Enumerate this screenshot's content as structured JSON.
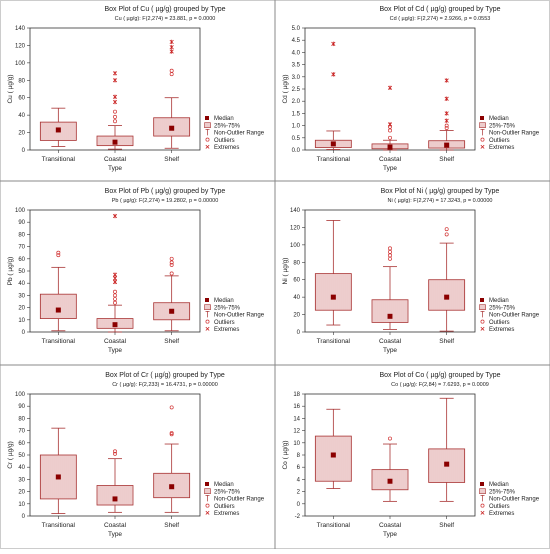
{
  "colors": {
    "box_stroke": "#a83232",
    "box_fill": "#f4dede",
    "box_hatch": "#e3b3b3",
    "median": "#8b0000",
    "whisker": "#a83232",
    "outlier": "#d03030",
    "extreme": "#c81e1e",
    "axis": "#333333",
    "frame": "#888888",
    "legend_box": "#bbbbbb"
  },
  "legend": {
    "items": [
      "Median",
      "25%-75%",
      "Non-Outlier Range",
      "Outliers",
      "Extremes"
    ]
  },
  "chart_data": [
    {
      "type": "box",
      "title": "Box Plot of Cu ( µg/g) grouped by Type",
      "subtitle": "Cu ( µg/g):  F(2,274) = 23.881, p = 0.0000",
      "xlabel": "Type",
      "ylabel": "Cu ( µg/g)",
      "categories": [
        "Transitional",
        "Coastal",
        "Shelf"
      ],
      "ylim": [
        0,
        140
      ],
      "yticks": [
        0,
        20,
        40,
        60,
        80,
        100,
        120,
        140
      ],
      "boxes": [
        {
          "median": 23,
          "q1": 11,
          "q3": 32,
          "whisker_low": 4,
          "whisker_high": 48,
          "outliers": [],
          "extremes": []
        },
        {
          "median": 9,
          "q1": 5,
          "q3": 16,
          "whisker_low": 1,
          "whisker_high": 28,
          "outliers": [
            33,
            38,
            44
          ],
          "extremes": [
            55,
            61,
            80,
            88
          ]
        },
        {
          "median": 25,
          "q1": 16,
          "q3": 37,
          "whisker_low": 2,
          "whisker_high": 60,
          "outliers": [
            87,
            91
          ],
          "extremes": [
            113,
            118,
            124
          ]
        }
      ]
    },
    {
      "type": "box",
      "title": "Box Plot of Cd ( µg/g) grouped by Type",
      "subtitle": "Cd ( µg/g):  F(2,274) = 2.9266, p = 0.0553",
      "xlabel": "Type",
      "ylabel": "Cd ( µg/g)",
      "categories": [
        "Transitional",
        "Coastal",
        "Shelf"
      ],
      "ylim": [
        0,
        5
      ],
      "yticks": [
        0.0,
        0.5,
        1.0,
        1.5,
        2.0,
        2.5,
        3.0,
        3.5,
        4.0,
        4.5,
        5.0
      ],
      "boxes": [
        {
          "median": 0.25,
          "q1": 0.1,
          "q3": 0.4,
          "whisker_low": 0.02,
          "whisker_high": 0.78,
          "outliers": [],
          "extremes": [
            3.1,
            4.35
          ]
        },
        {
          "median": 0.12,
          "q1": 0.05,
          "q3": 0.25,
          "whisker_low": 0.0,
          "whisker_high": 0.4,
          "outliers": [
            0.5,
            0.8,
            0.95
          ],
          "extremes": [
            1.05,
            2.55
          ]
        },
        {
          "median": 0.2,
          "q1": 0.08,
          "q3": 0.38,
          "whisker_low": 0.0,
          "whisker_high": 0.8,
          "outliers": [
            0.9,
            1.0
          ],
          "extremes": [
            1.2,
            1.5,
            2.1,
            2.85
          ]
        }
      ]
    },
    {
      "type": "box",
      "title": "Box Plot of Pb ( µg/g) grouped by Type",
      "subtitle": "Pb ( µg/g):  F(2,274) = 19.2802, p = 0.00000",
      "xlabel": "Type",
      "ylabel": "Pb ( µg/g)",
      "categories": [
        "Transitional",
        "Coastal",
        "Shelf"
      ],
      "ylim": [
        0,
        100
      ],
      "yticks": [
        0,
        10,
        20,
        30,
        40,
        50,
        60,
        70,
        80,
        90,
        100
      ],
      "boxes": [
        {
          "median": 18,
          "q1": 11,
          "q3": 31,
          "whisker_low": 1,
          "whisker_high": 53,
          "outliers": [
            63,
            65
          ],
          "extremes": []
        },
        {
          "median": 6,
          "q1": 3,
          "q3": 11,
          "whisker_low": 0,
          "whisker_high": 22,
          "outliers": [
            24,
            27,
            30,
            33
          ],
          "extremes": [
            41,
            44,
            47,
            95
          ]
        },
        {
          "median": 17,
          "q1": 10,
          "q3": 24,
          "whisker_low": 1,
          "whisker_high": 46,
          "outliers": [
            48,
            55,
            57,
            60
          ],
          "extremes": []
        }
      ]
    },
    {
      "type": "box",
      "title": "Box Plot of Ni ( µg/g) grouped by Type",
      "subtitle": "Ni ( µg/g):  F(2,274) = 17.3243, p = 0.00000",
      "xlabel": "Type",
      "ylabel": "Ni ( µg/g)",
      "categories": [
        "Transitional",
        "Coastal",
        "Shelf"
      ],
      "ylim": [
        0,
        140
      ],
      "yticks": [
        0,
        20,
        40,
        60,
        80,
        100,
        120,
        140
      ],
      "boxes": [
        {
          "median": 40,
          "q1": 25,
          "q3": 67,
          "whisker_low": 8,
          "whisker_high": 128,
          "outliers": [],
          "extremes": []
        },
        {
          "median": 18,
          "q1": 11,
          "q3": 37,
          "whisker_low": 3,
          "whisker_high": 75,
          "outliers": [
            84,
            88,
            92,
            96
          ],
          "extremes": []
        },
        {
          "median": 40,
          "q1": 25,
          "q3": 60,
          "whisker_low": 1,
          "whisker_high": 102,
          "outliers": [
            112,
            118
          ],
          "extremes": []
        }
      ]
    },
    {
      "type": "box",
      "title": "Box Plot of Cr ( µg/g) grouped by Type",
      "subtitle": "Cr ( µg/g):  F(2,233) = 16.4731, p = 0.00000",
      "xlabel": "Type",
      "ylabel": "Cr ( µg/g)",
      "categories": [
        "Transitional",
        "Coastal",
        "Shelf"
      ],
      "ylim": [
        0,
        100
      ],
      "yticks": [
        0,
        10,
        20,
        30,
        40,
        50,
        60,
        70,
        80,
        90,
        100
      ],
      "boxes": [
        {
          "median": 32,
          "q1": 14,
          "q3": 50,
          "whisker_low": 2,
          "whisker_high": 72,
          "outliers": [],
          "extremes": []
        },
        {
          "median": 14,
          "q1": 9,
          "q3": 25,
          "whisker_low": 3,
          "whisker_high": 47,
          "outliers": [
            51,
            53
          ],
          "extremes": []
        },
        {
          "median": 24,
          "q1": 15,
          "q3": 35,
          "whisker_low": 3,
          "whisker_high": 59,
          "outliers": [
            67,
            68,
            89
          ],
          "extremes": []
        }
      ]
    },
    {
      "type": "box",
      "title": "Box Plot of Co ( µg/g) grouped by Type",
      "subtitle": "Co ( µg/g):  F(2,84) = 7.6293, p = 0.0009",
      "xlabel": "Type",
      "ylabel": "Co ( µg/g)",
      "categories": [
        "Transitional",
        "Coastal",
        "Shelf"
      ],
      "ylim": [
        -2,
        18
      ],
      "yticks": [
        -2,
        0,
        2,
        4,
        6,
        8,
        10,
        12,
        14,
        16,
        18
      ],
      "boxes": [
        {
          "median": 8,
          "q1": 3.7,
          "q3": 11.1,
          "whisker_low": 2.5,
          "whisker_high": 15.5,
          "outliers": [],
          "extremes": []
        },
        {
          "median": 3.7,
          "q1": 2.3,
          "q3": 5.6,
          "whisker_low": 0.4,
          "whisker_high": 9.8,
          "outliers": [
            10.7
          ],
          "extremes": []
        },
        {
          "median": 6.5,
          "q1": 3.5,
          "q3": 9,
          "whisker_low": 0.4,
          "whisker_high": 17.3,
          "outliers": [],
          "extremes": []
        }
      ]
    }
  ]
}
